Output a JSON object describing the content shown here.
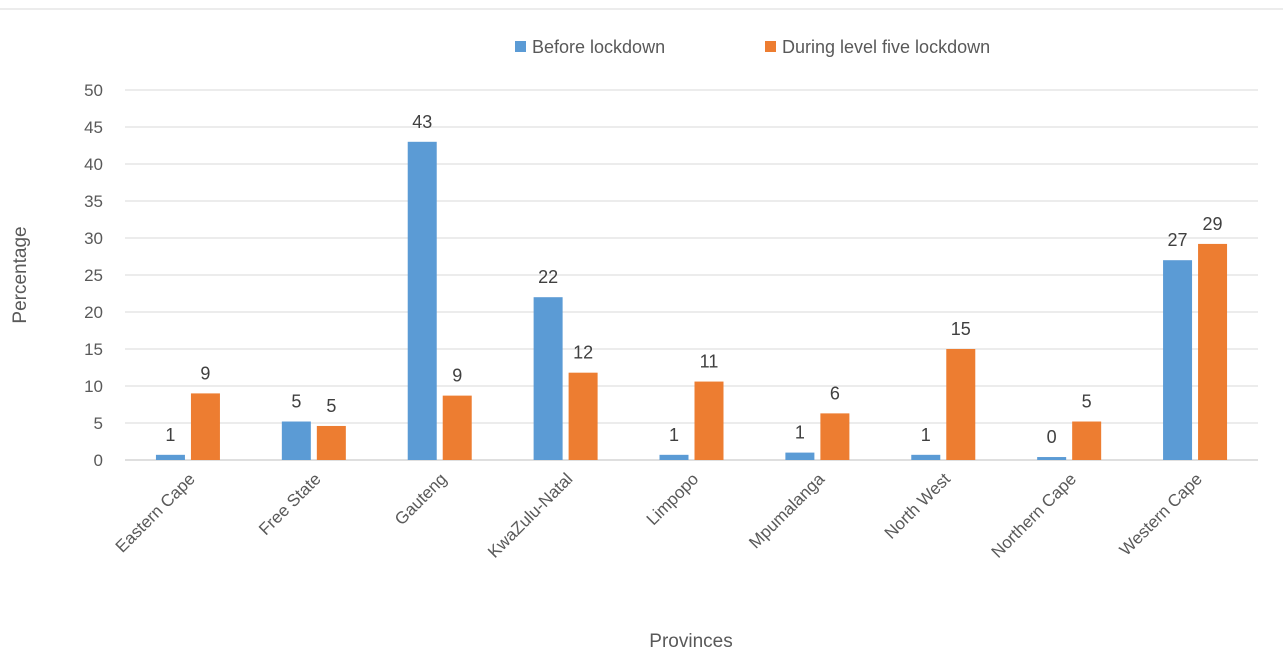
{
  "chart_data": {
    "type": "bar",
    "xlabel": "Provinces",
    "ylabel": "Percentage",
    "ylim": [
      0,
      50
    ],
    "yticks": [
      0,
      5,
      10,
      15,
      20,
      25,
      30,
      35,
      40,
      45,
      50
    ],
    "grid": true,
    "legend_position": "top",
    "categories": [
      "Eastern Cape",
      "Free State",
      "Gauteng",
      "KwaZulu-Natal",
      "Limpopo",
      "Mpumalanga",
      "North West",
      "Northern Cape",
      "Western Cape"
    ],
    "series": [
      {
        "name": "Before lockdown",
        "color": "#5B9BD5",
        "values": [
          0.7,
          5.2,
          43,
          22,
          0.7,
          1,
          0.7,
          0.4,
          27
        ],
        "labels": [
          "1",
          "5",
          "43",
          "22",
          "1",
          "1",
          "1",
          "0",
          "27"
        ]
      },
      {
        "name": "During level five lockdown",
        "color": "#ED7D31",
        "values": [
          9,
          4.6,
          8.7,
          11.8,
          10.6,
          6.3,
          15,
          5.2,
          29.2
        ],
        "labels": [
          "9",
          "5",
          "9",
          "12",
          "11",
          "6",
          "15",
          "5",
          "29"
        ]
      }
    ]
  }
}
